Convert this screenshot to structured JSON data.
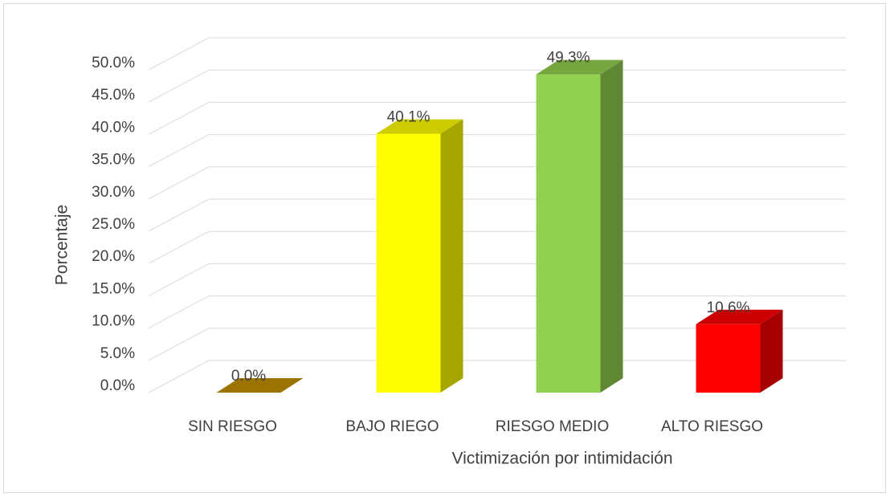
{
  "chart_data": {
    "type": "bar3d",
    "x_label": "Victimización por intimidación",
    "y_label": "Porcentaje",
    "categories": [
      "SIN RIESGO",
      "BAJO RIEGO",
      "RIESGO MEDIO",
      "ALTO RIESGO"
    ],
    "values": [
      0.0,
      40.1,
      49.3,
      10.6
    ],
    "value_labels": [
      "0.0%",
      "40.1%",
      "49.3%",
      "10.6%"
    ],
    "colors": [
      "#c09000",
      "#ffff00",
      "#92d050",
      "#ff0000"
    ],
    "ylim": [
      0,
      50
    ],
    "yticks": [
      {
        "value": 0,
        "label": "0.0%"
      },
      {
        "value": 5,
        "label": "5.0%"
      },
      {
        "value": 10,
        "label": "10.0%"
      },
      {
        "value": 15,
        "label": "15.0%"
      },
      {
        "value": 20,
        "label": "20.0%"
      },
      {
        "value": 25,
        "label": "25.0%"
      },
      {
        "value": 30,
        "label": "30.0%"
      },
      {
        "value": 35,
        "label": "35.0%"
      },
      {
        "value": 40,
        "label": "40.0%"
      },
      {
        "value": 45,
        "label": "45.0%"
      },
      {
        "value": 50,
        "label": "50.0%"
      }
    ],
    "grid": true
  }
}
